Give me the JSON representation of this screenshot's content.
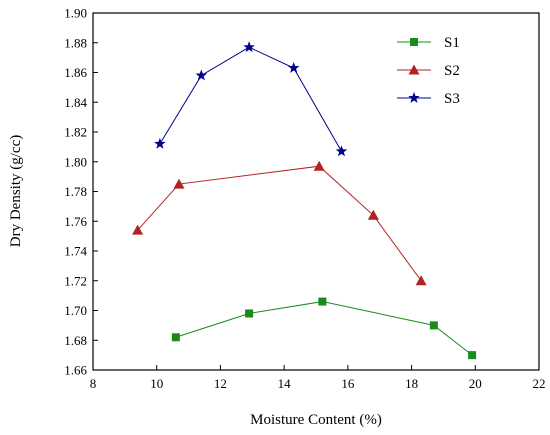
{
  "chart_data": {
    "type": "line",
    "title": "",
    "xlabel": "Moisture Content (%)",
    "ylabel": "Dry Density (g/cc)",
    "xlim": [
      8,
      22
    ],
    "ylim": [
      1.66,
      1.9
    ],
    "xticks": [
      8,
      10,
      12,
      14,
      16,
      18,
      20,
      22
    ],
    "yticks": [
      1.66,
      1.68,
      1.7,
      1.72,
      1.74,
      1.76,
      1.78,
      1.8,
      1.82,
      1.84,
      1.86,
      1.88,
      1.9
    ],
    "grid": false,
    "legend_position": "top-right",
    "series": [
      {
        "name": "S1",
        "color": "#1a8a1a",
        "marker": "square",
        "points": [
          [
            10.6,
            1.682
          ],
          [
            12.9,
            1.698
          ],
          [
            15.2,
            1.706
          ],
          [
            18.7,
            1.69
          ],
          [
            19.9,
            1.67
          ]
        ]
      },
      {
        "name": "S2",
        "color": "#b22222",
        "marker": "triangle",
        "points": [
          [
            9.4,
            1.754
          ],
          [
            10.7,
            1.785
          ],
          [
            15.1,
            1.797
          ],
          [
            16.8,
            1.764
          ],
          [
            18.3,
            1.72
          ]
        ]
      },
      {
        "name": "S3",
        "color": "#00008b",
        "marker": "star",
        "points": [
          [
            10.1,
            1.812
          ],
          [
            11.4,
            1.858
          ],
          [
            12.9,
            1.877
          ],
          [
            14.3,
            1.863
          ],
          [
            15.8,
            1.807
          ]
        ]
      }
    ]
  }
}
